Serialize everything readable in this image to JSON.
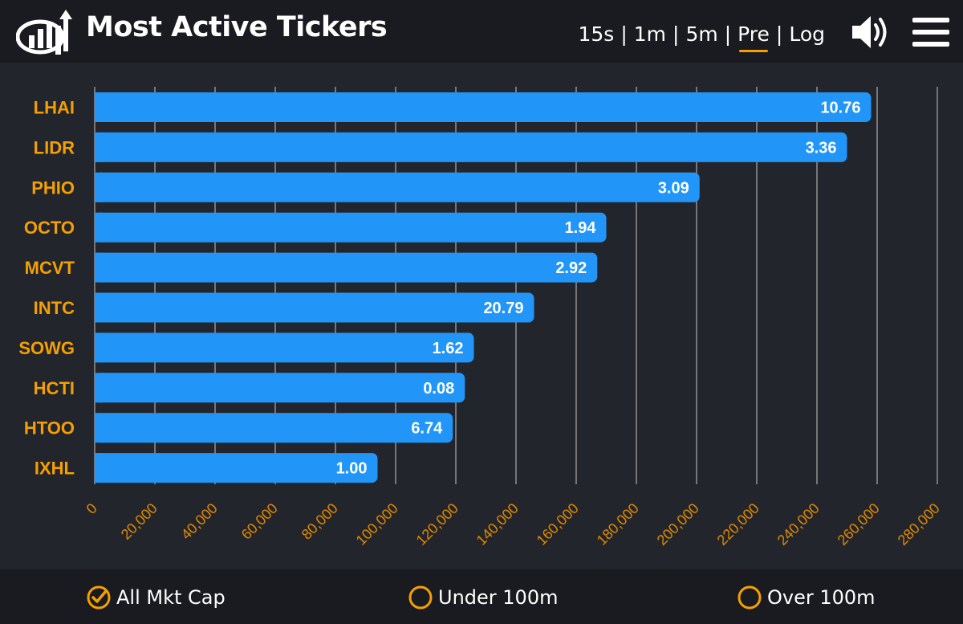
{
  "header": {
    "title": "Most Active Tickers",
    "tabs": [
      {
        "label": "15s",
        "active": false
      },
      {
        "label": "1m",
        "active": false
      },
      {
        "label": "5m",
        "active": false
      },
      {
        "label": "Pre",
        "active": true
      },
      {
        "label": "Log",
        "active": false
      }
    ],
    "separator": "|",
    "speaker_icon": "speaker-icon",
    "menu_icon": "hamburger-menu-icon"
  },
  "colors": {
    "bar": "#2196f8",
    "ticker_label": "#f5a000",
    "axis_label": "#e08a00",
    "grid": "#c8c8c8",
    "background": "#23252c",
    "header_bg": "#191b20"
  },
  "chart_data": {
    "type": "bar",
    "orientation": "horizontal",
    "categories": [
      "LHAI",
      "LIDR",
      "PHIO",
      "OCTO",
      "MCVT",
      "INTC",
      "SOWG",
      "HCTI",
      "HTOO",
      "IXHL"
    ],
    "values": [
      258000,
      250000,
      201000,
      170000,
      167000,
      146000,
      126000,
      123000,
      119000,
      94000
    ],
    "data_labels": [
      "10.76",
      "3.36",
      "3.09",
      "1.94",
      "2.92",
      "20.79",
      "1.62",
      "0.08",
      "6.74",
      "1.00"
    ],
    "xlim": [
      0,
      280000
    ],
    "xticks": [
      0,
      20000,
      40000,
      60000,
      80000,
      100000,
      120000,
      140000,
      160000,
      180000,
      200000,
      220000,
      240000,
      260000,
      280000
    ],
    "xtick_labels": [
      "0",
      "20,000",
      "40,000",
      "60,000",
      "80,000",
      "100,000",
      "120,000",
      "140,000",
      "160,000",
      "180,000",
      "200,000",
      "220,000",
      "240,000",
      "260,000",
      "280,000"
    ],
    "grid": true
  },
  "filters": [
    {
      "label": "All Mkt Cap",
      "checked": true
    },
    {
      "label": "Under 100m",
      "checked": false
    },
    {
      "label": "Over 100m",
      "checked": false
    }
  ]
}
